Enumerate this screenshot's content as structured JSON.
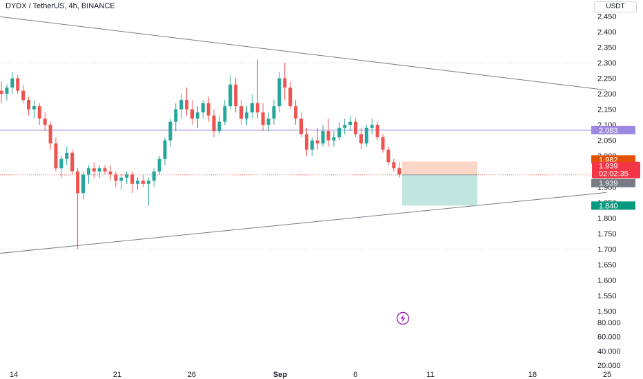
{
  "header": {
    "symbol": "DYDX / TetherUS, 4h, BINANCE",
    "currency": "USDT"
  },
  "colors": {
    "up": "#26a69a",
    "down": "#ef5350",
    "hline": "#9c88e0",
    "trendline": "#787b86",
    "stop_zone": "#f7ccb8",
    "target_zone": "#b2dfd8",
    "label_purple": "#9c88e0",
    "label_orange": "#e65100",
    "label_red": "#f23645",
    "label_gray": "#787b86",
    "label_teal": "#089981"
  },
  "chart_data": {
    "type": "candlestick",
    "price_axis": {
      "min": 1.5,
      "max": 2.45,
      "ticks": [
        "2.450",
        "2.400",
        "2.350",
        "2.300",
        "2.250",
        "2.200",
        "2.150",
        "2.100",
        "2.050",
        "2.000",
        "1.950",
        "1.900",
        "1.850",
        "1.800",
        "1.750",
        "1.700",
        "1.650",
        "1.600",
        "1.550",
        "1.500"
      ]
    },
    "volume_axis": {
      "ticks": [
        "80.000",
        "60.000",
        "40.000",
        "20.000"
      ]
    },
    "x_ticks": [
      "14",
      "21",
      "26",
      "Sep",
      "6",
      "11",
      "18",
      "25"
    ],
    "price_labels": {
      "horizontal_line": "2.083",
      "entry_top": "1.982",
      "current_price": "1.939",
      "countdown": "02:02:35",
      "last_price": "1.939",
      "target": "1.840"
    },
    "horizontal_line_price": 2.083,
    "position": {
      "stop": 1.982,
      "entry": 1.939,
      "target": 1.84
    },
    "candles": [
      [
        2.21,
        2.24,
        2.17,
        2.2
      ],
      [
        2.2,
        2.23,
        2.18,
        2.22
      ],
      [
        2.22,
        2.27,
        2.2,
        2.25
      ],
      [
        2.25,
        2.26,
        2.2,
        2.21
      ],
      [
        2.21,
        2.23,
        2.17,
        2.18
      ],
      [
        2.18,
        2.19,
        2.13,
        2.15
      ],
      [
        2.15,
        2.18,
        2.12,
        2.16
      ],
      [
        2.16,
        2.17,
        2.1,
        2.12
      ],
      [
        2.12,
        2.14,
        2.08,
        2.1
      ],
      [
        2.1,
        2.11,
        2.02,
        2.04
      ],
      [
        2.04,
        2.06,
        1.95,
        1.96
      ],
      [
        1.96,
        2.0,
        1.93,
        1.99
      ],
      [
        1.99,
        2.03,
        1.97,
        2.01
      ],
      [
        2.01,
        2.02,
        1.94,
        1.95
      ],
      [
        1.95,
        1.96,
        1.7,
        1.88
      ],
      [
        1.88,
        1.95,
        1.86,
        1.94
      ],
      [
        1.94,
        1.97,
        1.91,
        1.96
      ],
      [
        1.96,
        1.98,
        1.93,
        1.95
      ],
      [
        1.95,
        1.97,
        1.93,
        1.96
      ],
      [
        1.96,
        1.97,
        1.94,
        1.95
      ],
      [
        1.95,
        1.97,
        1.92,
        1.94
      ],
      [
        1.94,
        1.95,
        1.9,
        1.92
      ],
      [
        1.92,
        1.94,
        1.89,
        1.93
      ],
      [
        1.93,
        1.95,
        1.91,
        1.94
      ],
      [
        1.94,
        1.95,
        1.88,
        1.91
      ],
      [
        1.91,
        1.93,
        1.89,
        1.92
      ],
      [
        1.92,
        1.94,
        1.9,
        1.91
      ],
      [
        1.91,
        1.93,
        1.84,
        1.92
      ],
      [
        1.92,
        1.96,
        1.9,
        1.95
      ],
      [
        1.95,
        2.0,
        1.94,
        1.99
      ],
      [
        1.99,
        2.06,
        1.97,
        2.05
      ],
      [
        2.05,
        2.12,
        2.03,
        2.11
      ],
      [
        2.11,
        2.17,
        2.08,
        2.15
      ],
      [
        2.15,
        2.2,
        2.12,
        2.18
      ],
      [
        2.18,
        2.22,
        2.13,
        2.15
      ],
      [
        2.15,
        2.18,
        2.1,
        2.12
      ],
      [
        2.12,
        2.16,
        2.09,
        2.14
      ],
      [
        2.14,
        2.18,
        2.12,
        2.17
      ],
      [
        2.17,
        2.19,
        2.11,
        2.13
      ],
      [
        2.13,
        2.15,
        2.06,
        2.08
      ],
      [
        2.08,
        2.13,
        2.07,
        2.11
      ],
      [
        2.11,
        2.18,
        2.1,
        2.16
      ],
      [
        2.16,
        2.26,
        2.15,
        2.23
      ],
      [
        2.23,
        2.25,
        2.14,
        2.16
      ],
      [
        2.16,
        2.18,
        2.1,
        2.12
      ],
      [
        2.12,
        2.16,
        2.1,
        2.14
      ],
      [
        2.14,
        2.2,
        2.12,
        2.17
      ],
      [
        2.17,
        2.31,
        2.12,
        2.14
      ],
      [
        2.14,
        2.17,
        2.08,
        2.1
      ],
      [
        2.1,
        2.14,
        2.08,
        2.12
      ],
      [
        2.12,
        2.18,
        2.1,
        2.16
      ],
      [
        2.16,
        2.27,
        2.14,
        2.25
      ],
      [
        2.25,
        2.3,
        2.18,
        2.22
      ],
      [
        2.22,
        2.24,
        2.15,
        2.16
      ],
      [
        2.16,
        2.18,
        2.1,
        2.12
      ],
      [
        2.12,
        2.14,
        2.06,
        2.07
      ],
      [
        2.07,
        2.09,
        2.0,
        2.02
      ],
      [
        2.02,
        2.06,
        2.0,
        2.05
      ],
      [
        2.05,
        2.09,
        2.02,
        2.04
      ],
      [
        2.04,
        2.1,
        2.03,
        2.08
      ],
      [
        2.08,
        2.12,
        2.03,
        2.05
      ],
      [
        2.05,
        2.08,
        2.03,
        2.06
      ],
      [
        2.06,
        2.11,
        2.05,
        2.09
      ],
      [
        2.09,
        2.12,
        2.07,
        2.1
      ],
      [
        2.1,
        2.13,
        2.08,
        2.11
      ],
      [
        2.11,
        2.12,
        2.06,
        2.07
      ],
      [
        2.07,
        2.09,
        2.02,
        2.04
      ],
      [
        2.04,
        2.1,
        2.03,
        2.09
      ],
      [
        2.09,
        2.12,
        2.07,
        2.1
      ],
      [
        2.1,
        2.11,
        2.05,
        2.06
      ],
      [
        2.06,
        2.07,
        2.01,
        2.02
      ],
      [
        2.02,
        2.03,
        1.97,
        1.98
      ],
      [
        1.98,
        1.99,
        1.95,
        1.96
      ],
      [
        1.96,
        1.98,
        1.93,
        1.94
      ]
    ],
    "trendlines": [
      {
        "from": {
          "bar": -1,
          "price": 2.45
        },
        "to": {
          "bar": 111,
          "price": 2.212
        }
      },
      {
        "from": {
          "bar": -1,
          "price": 1.685
        },
        "to": {
          "bar": 111,
          "price": 1.882
        }
      }
    ]
  }
}
